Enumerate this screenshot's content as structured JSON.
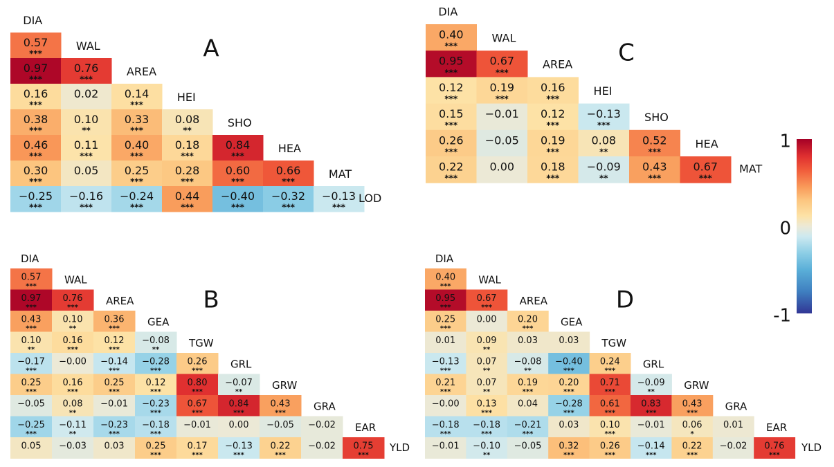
{
  "colors": {
    "scale": [
      {
        "v": -1.0,
        "c": "#313695"
      },
      {
        "v": -0.75,
        "c": "#3f7fc0"
      },
      {
        "v": -0.5,
        "c": "#5aafd8"
      },
      {
        "v": -0.3,
        "c": "#8fcfe6"
      },
      {
        "v": -0.12,
        "c": "#cde9f0"
      },
      {
        "v": 0.0,
        "c": "#ece9d6"
      },
      {
        "v": 0.12,
        "c": "#fde2a6"
      },
      {
        "v": 0.3,
        "c": "#fcc57f"
      },
      {
        "v": 0.45,
        "c": "#f99a5a"
      },
      {
        "v": 0.65,
        "c": "#f05a3a"
      },
      {
        "v": 0.8,
        "c": "#e03030"
      },
      {
        "v": 1.0,
        "c": "#a50026"
      }
    ],
    "text": "#111111",
    "label": "#111111"
  },
  "colorbar": {
    "tick_labels": [
      "1",
      "0",
      "-1"
    ],
    "tick_values": [
      1,
      0,
      -1
    ]
  },
  "chart_data": [
    {
      "type": "heatmap",
      "title": "A",
      "variables": [
        "DIA",
        "WAL",
        "AREA",
        "HEI",
        "SHO",
        "HEA",
        "MAT",
        "LOD"
      ],
      "rows": [
        {
          "name": "DIA",
          "values": [
            0.57
          ],
          "sig": [
            "***"
          ],
          "labels": [
            "0.57"
          ]
        },
        {
          "name": "WAL",
          "values": [
            0.97,
            0.76
          ],
          "sig": [
            "***",
            "***"
          ],
          "labels": [
            "0.97",
            "0.76"
          ]
        },
        {
          "name": "AREA",
          "values": [
            0.16,
            0.02,
            0.14
          ],
          "sig": [
            "***",
            "",
            "***"
          ],
          "labels": [
            "0.16",
            "0.02",
            "0.14"
          ]
        },
        {
          "name": "HEI",
          "values": [
            0.38,
            0.1,
            0.33,
            0.08
          ],
          "sig": [
            "***",
            "**",
            "***",
            "**"
          ],
          "labels": [
            "0.38",
            "0.10",
            "0.33",
            "0.08"
          ]
        },
        {
          "name": "SHO",
          "values": [
            0.46,
            0.11,
            0.4,
            0.18,
            0.84
          ],
          "sig": [
            "***",
            "***",
            "***",
            "***",
            "***"
          ],
          "labels": [
            "0.46",
            "0.11",
            "0.40",
            "0.18",
            "0.84"
          ]
        },
        {
          "name": "HEA",
          "values": [
            0.3,
            0.05,
            0.25,
            0.28,
            0.6,
            0.66
          ],
          "sig": [
            "***",
            "",
            "***",
            "***",
            "***",
            "***"
          ],
          "labels": [
            "0.30",
            "0.05",
            "0.25",
            "0.28",
            "0.60",
            "0.66"
          ]
        },
        {
          "name": "MAT",
          "values": [
            -0.25,
            -0.16,
            -0.24,
            0.44,
            -0.4,
            -0.32,
            -0.13
          ],
          "sig": [
            "***",
            "***",
            "***",
            "***",
            "***",
            "***",
            "***"
          ],
          "labels": [
            "−0.25",
            "−0.16",
            "−0.24",
            "0.44",
            "−0.40",
            "−0.32",
            "−0.13"
          ]
        }
      ]
    },
    {
      "type": "heatmap",
      "title": "C",
      "variables": [
        "DIA",
        "WAL",
        "AREA",
        "HEI",
        "SHO",
        "HEA",
        "MAT"
      ],
      "rows": [
        {
          "name": "DIA",
          "values": [
            0.4
          ],
          "sig": [
            "***"
          ],
          "labels": [
            "0.40"
          ]
        },
        {
          "name": "WAL",
          "values": [
            0.95,
            0.67
          ],
          "sig": [
            "***",
            "***"
          ],
          "labels": [
            "0.95",
            "0.67"
          ]
        },
        {
          "name": "AREA",
          "values": [
            0.12,
            0.19,
            0.16
          ],
          "sig": [
            "***",
            "***",
            "***"
          ],
          "labels": [
            "0.12",
            "0.19",
            "0.16"
          ]
        },
        {
          "name": "HEI",
          "values": [
            0.15,
            -0.01,
            0.12,
            -0.13
          ],
          "sig": [
            "***",
            "",
            "***",
            "***"
          ],
          "labels": [
            "0.15",
            "−0.01",
            "0.12",
            "−0.13"
          ]
        },
        {
          "name": "SHO",
          "values": [
            0.26,
            -0.05,
            0.19,
            0.08,
            0.52
          ],
          "sig": [
            "***",
            "",
            "***",
            "**",
            "***"
          ],
          "labels": [
            "0.26",
            "−0.05",
            "0.19",
            "0.08",
            "0.52"
          ]
        },
        {
          "name": "HEA",
          "values": [
            0.22,
            0.0,
            0.18,
            -0.09,
            0.43,
            0.67
          ],
          "sig": [
            "***",
            "",
            "***",
            "**",
            "***",
            "***"
          ],
          "labels": [
            "0.22",
            "0.00",
            "0.18",
            "−0.09",
            "0.43",
            "0.67"
          ]
        }
      ]
    },
    {
      "type": "heatmap",
      "title": "B",
      "variables": [
        "DIA",
        "WAL",
        "AREA",
        "GEA",
        "TGW",
        "GRL",
        "GRW",
        "GRA",
        "EAR",
        "YLD"
      ],
      "rows": [
        {
          "name": "DIA",
          "values": [
            0.57
          ],
          "sig": [
            "***"
          ],
          "labels": [
            "0.57"
          ]
        },
        {
          "name": "WAL",
          "values": [
            0.97,
            0.76
          ],
          "sig": [
            "***",
            "***"
          ],
          "labels": [
            "0.97",
            "0.76"
          ]
        },
        {
          "name": "AREA",
          "values": [
            0.43,
            0.1,
            0.36
          ],
          "sig": [
            "***",
            "**",
            "***"
          ],
          "labels": [
            "0.43",
            "0.10",
            "0.36"
          ]
        },
        {
          "name": "GEA",
          "values": [
            0.1,
            0.16,
            0.12,
            -0.08
          ],
          "sig": [
            "**",
            "***",
            "***",
            "**"
          ],
          "labels": [
            "0.10",
            "0.16",
            "0.12",
            "−0.08"
          ]
        },
        {
          "name": "TGW",
          "values": [
            -0.17,
            -0.0,
            -0.14,
            -0.28,
            0.26
          ],
          "sig": [
            "***",
            "",
            "***",
            "***",
            "***"
          ],
          "labels": [
            "−0.17",
            "−0.00",
            "−0.14",
            "−0.28",
            "0.26"
          ]
        },
        {
          "name": "GRL",
          "values": [
            0.25,
            0.16,
            0.25,
            0.12,
            0.8,
            -0.07
          ],
          "sig": [
            "***",
            "***",
            "***",
            "***",
            "***",
            "**"
          ],
          "labels": [
            "0.25",
            "0.16",
            "0.25",
            "0.12",
            "0.80",
            "−0.07"
          ]
        },
        {
          "name": "GRW",
          "values": [
            -0.05,
            0.08,
            -0.01,
            -0.23,
            0.67,
            0.84,
            0.43
          ],
          "sig": [
            "",
            "**",
            "",
            "***",
            "***",
            "***",
            "***"
          ],
          "labels": [
            "−0.05",
            "0.08",
            "−0.01",
            "−0.23",
            "0.67",
            "0.84",
            "0.43"
          ]
        },
        {
          "name": "GRA",
          "values": [
            -0.25,
            -0.11,
            -0.23,
            -0.18,
            -0.01,
            0.0,
            -0.05,
            -0.02
          ],
          "sig": [
            "***",
            "**",
            "***",
            "***",
            "",
            "",
            "",
            ""
          ],
          "labels": [
            "−0.25",
            "−0.11",
            "−0.23",
            "−0.18",
            "−0.01",
            "0.00",
            "−0.05",
            "−0.02"
          ]
        },
        {
          "name": "EAR",
          "values": [
            0.05,
            -0.03,
            0.03,
            0.25,
            0.17,
            -0.13,
            0.22,
            -0.02,
            0.75
          ],
          "sig": [
            "",
            "",
            "",
            "***",
            "***",
            "***",
            "***",
            "",
            "***"
          ],
          "labels": [
            "0.05",
            "−0.03",
            "0.03",
            "0.25",
            "0.17",
            "−0.13",
            "0.22",
            "−0.02",
            "0.75"
          ]
        }
      ]
    },
    {
      "type": "heatmap",
      "title": "D",
      "variables": [
        "DIA",
        "WAL",
        "AREA",
        "GEA",
        "TGW",
        "GRL",
        "GRW",
        "GRA",
        "EAR",
        "YLD"
      ],
      "rows": [
        {
          "name": "DIA",
          "values": [
            0.4
          ],
          "sig": [
            "***"
          ],
          "labels": [
            "0.40"
          ]
        },
        {
          "name": "WAL",
          "values": [
            0.95,
            0.67
          ],
          "sig": [
            "***",
            "***"
          ],
          "labels": [
            "0.95",
            "0.67"
          ]
        },
        {
          "name": "AREA",
          "values": [
            0.25,
            0.0,
            0.2
          ],
          "sig": [
            "***",
            "",
            "***"
          ],
          "labels": [
            "0.25",
            "0.00",
            "0.20"
          ]
        },
        {
          "name": "GEA",
          "values": [
            0.01,
            0.09,
            0.03,
            0.03
          ],
          "sig": [
            "",
            "**",
            "",
            ""
          ],
          "labels": [
            "0.01",
            "0.09",
            "0.03",
            "0.03"
          ]
        },
        {
          "name": "TGW",
          "values": [
            -0.13,
            0.07,
            -0.08,
            -0.4,
            0.24
          ],
          "sig": [
            "***",
            "**",
            "**",
            "***",
            "***"
          ],
          "labels": [
            "−0.13",
            "0.07",
            "−0.08",
            "−0.40",
            "0.24"
          ]
        },
        {
          "name": "GRL",
          "values": [
            0.21,
            0.07,
            0.19,
            0.2,
            0.71,
            -0.09
          ],
          "sig": [
            "***",
            "**",
            "***",
            "***",
            "***",
            "**"
          ],
          "labels": [
            "0.21",
            "0.07",
            "0.19",
            "0.20",
            "0.71",
            "−0.09"
          ]
        },
        {
          "name": "GRW",
          "values": [
            -0.0,
            0.13,
            0.04,
            -0.28,
            0.61,
            0.83,
            0.43
          ],
          "sig": [
            "",
            "***",
            "",
            "***",
            "***",
            "***",
            "***"
          ],
          "labels": [
            "−0.00",
            "0.13",
            "0.04",
            "−0.28",
            "0.61",
            "0.83",
            "0.43"
          ]
        },
        {
          "name": "GRA",
          "values": [
            -0.18,
            -0.18,
            -0.21,
            0.03,
            0.1,
            -0.01,
            0.06,
            0.01
          ],
          "sig": [
            "***",
            "***",
            "***",
            "",
            "***",
            "",
            "*",
            ""
          ],
          "labels": [
            "−0.18",
            "−0.18",
            "−0.21",
            "0.03",
            "0.10",
            "−0.01",
            "0.06",
            "0.01"
          ]
        },
        {
          "name": "EAR",
          "values": [
            -0.01,
            -0.1,
            -0.05,
            0.32,
            0.26,
            -0.14,
            0.22,
            -0.02,
            0.76
          ],
          "sig": [
            "",
            "**",
            "",
            "***",
            "***",
            "***",
            "***",
            "",
            "***"
          ],
          "labels": [
            "−0.01",
            "−0.10",
            "−0.05",
            "0.32",
            "0.26",
            "−0.14",
            "0.22",
            "−0.02",
            "0.76"
          ]
        }
      ]
    }
  ]
}
